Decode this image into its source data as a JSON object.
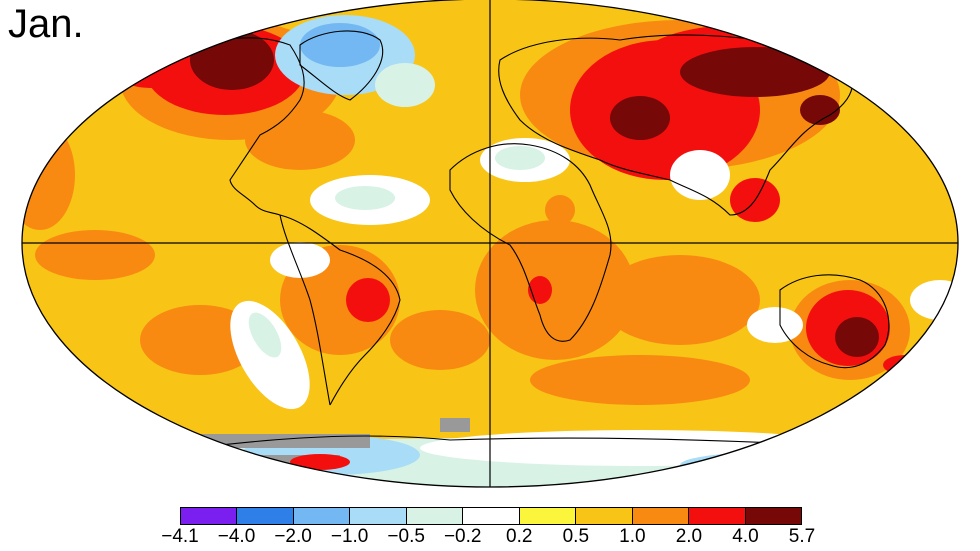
{
  "title": "Jan.",
  "legend": {
    "colors": [
      "#7a1ff0",
      "#2f7fe8",
      "#73b8f2",
      "#a9dcf6",
      "#d8f2e6",
      "#ffffff",
      "#fbf53c",
      "#f8c416",
      "#f88a12",
      "#f40f0f",
      "#770808"
    ],
    "ticks": [
      "−4.1",
      "−4.0",
      "−2.0",
      "−1.0",
      "−0.5",
      "−0.2",
      "0.2",
      "0.5",
      "1.0",
      "2.0",
      "4.0",
      "5.7"
    ]
  },
  "map": {
    "colors": {
      "base": "#f8c416",
      "warm": "#f88a12",
      "hot": "#f40f0f",
      "extreme": "#770808",
      "neutral": "#ffffff",
      "cool": "#d8f2e6",
      "cold": "#a9dcf6",
      "colder": "#73b8f2",
      "nodata": "#999999",
      "lightwarm": "#fbf53c"
    }
  }
}
